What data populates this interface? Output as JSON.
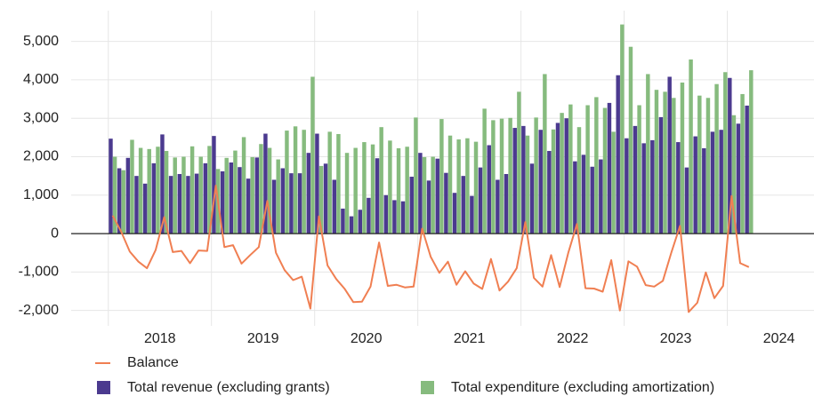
{
  "chart_data": {
    "type": "bar+line",
    "x": [
      2018,
      2018.083,
      2018.167,
      2018.25,
      2018.333,
      2018.417,
      2018.5,
      2018.583,
      2018.667,
      2018.75,
      2018.833,
      2018.917,
      2019,
      2019.083,
      2019.167,
      2019.25,
      2019.333,
      2019.417,
      2019.5,
      2019.583,
      2019.667,
      2019.75,
      2019.833,
      2019.917,
      2020,
      2020.083,
      2020.167,
      2020.25,
      2020.333,
      2020.417,
      2020.5,
      2020.583,
      2020.667,
      2020.75,
      2020.833,
      2020.917,
      2021,
      2021.083,
      2021.167,
      2021.25,
      2021.333,
      2021.417,
      2021.5,
      2021.583,
      2021.667,
      2021.75,
      2021.833,
      2021.917,
      2022,
      2022.083,
      2022.167,
      2022.25,
      2022.333,
      2022.417,
      2022.5,
      2022.583,
      2022.667,
      2022.75,
      2022.833,
      2022.917,
      2023,
      2023.083,
      2023.167,
      2023.25,
      2023.333,
      2023.417,
      2023.5,
      2023.583,
      2023.667,
      2023.75,
      2023.833,
      2023.917,
      2024,
      2024.083,
      2024.167
    ],
    "series": [
      {
        "name": "Balance",
        "type": "line",
        "color": "#f07f52",
        "values": [
          470,
          50,
          -470,
          -730,
          -900,
          -430,
          430,
          -480,
          -450,
          -770,
          -440,
          -450,
          1250,
          -350,
          -300,
          -780,
          -560,
          -350,
          850,
          -500,
          -950,
          -1210,
          -1120,
          -1950,
          450,
          -830,
          -1180,
          -1440,
          -1780,
          -1770,
          -1380,
          -230,
          -1360,
          -1330,
          -1400,
          -1380,
          130,
          -600,
          -1020,
          -730,
          -1330,
          -980,
          -1300,
          -1440,
          -660,
          -1480,
          -1250,
          -900,
          300,
          -1150,
          -1380,
          -560,
          -1390,
          -500,
          250,
          -1420,
          -1430,
          -1510,
          -690,
          -2000,
          -720,
          -860,
          -1340,
          -1380,
          -1230,
          -480,
          200,
          -2040,
          -1800,
          -1010,
          -1680,
          -1360,
          980,
          -770,
          -870
        ]
      },
      {
        "name": "Total revenue (excluding grants)",
        "type": "bar",
        "color": "#4b3a8f",
        "values": [
          2470,
          1700,
          1970,
          1500,
          1300,
          1830,
          2580,
          1500,
          1550,
          1500,
          1560,
          1830,
          2540,
          1620,
          1850,
          1730,
          1430,
          1980,
          2600,
          1400,
          1700,
          1570,
          1570,
          2100,
          2600,
          1820,
          1400,
          650,
          450,
          620,
          930,
          1960,
          1000,
          870,
          840,
          1480,
          2100,
          1380,
          1950,
          1580,
          1060,
          1500,
          980,
          1720,
          2300,
          1400,
          1550,
          2750,
          2800,
          1820,
          2700,
          2150,
          2880,
          3000,
          1880,
          2050,
          1740,
          1930,
          3400,
          4120,
          2480,
          2800,
          2350,
          2430,
          3030,
          4080,
          2380,
          1720,
          2530,
          2220,
          2650,
          2700,
          4050,
          2860,
          3330
        ]
      },
      {
        "name": "Total expenditure (excluding amortization)",
        "type": "bar",
        "color": "#86bb7e",
        "values": [
          2000,
          1650,
          2440,
          2230,
          2200,
          2260,
          2150,
          1980,
          2000,
          2270,
          2000,
          2280,
          1680,
          1970,
          2160,
          2510,
          1990,
          2330,
          2230,
          1930,
          2680,
          2790,
          2700,
          4080,
          1760,
          2650,
          2590,
          2100,
          2230,
          2380,
          2320,
          2770,
          2420,
          2220,
          2260,
          3020,
          1990,
          2000,
          2980,
          2550,
          2450,
          2480,
          2390,
          3250,
          2950,
          2990,
          3010,
          3690,
          2550,
          3020,
          4150,
          2710,
          3140,
          3360,
          2770,
          3340,
          3550,
          3270,
          2650,
          5440,
          4860,
          3340,
          4150,
          3740,
          3690,
          3530,
          3930,
          4530,
          3590,
          3530,
          3890,
          4200,
          3080,
          3630,
          4250
        ]
      }
    ],
    "xlim": [
      2017.64,
      2024.84
    ],
    "xticks": [
      {
        "value": 2018.5,
        "label": "2018"
      },
      {
        "value": 2019.5,
        "label": "2019"
      },
      {
        "value": 2020.5,
        "label": "2020"
      },
      {
        "value": 2021.5,
        "label": "2021"
      },
      {
        "value": 2022.5,
        "label": "2022"
      },
      {
        "value": 2023.5,
        "label": "2023"
      },
      {
        "value": 2024.5,
        "label": "2024"
      }
    ],
    "xgrid": [
      2018,
      2019,
      2020,
      2021,
      2022,
      2023,
      2024
    ],
    "ylim": [
      -2400,
      5800
    ],
    "yticks": [
      {
        "value": -2000,
        "label": "-2,000"
      },
      {
        "value": -1000,
        "label": "-1,000"
      },
      0,
      {
        "value": 1000,
        "label": "1,000"
      },
      {
        "value": 2000,
        "label": "2,000"
      },
      {
        "value": 3000,
        "label": "3,000"
      },
      {
        "value": 4000,
        "label": "4,000"
      },
      {
        "value": 5000,
        "label": "5,000"
      }
    ],
    "grid": true
  }
}
